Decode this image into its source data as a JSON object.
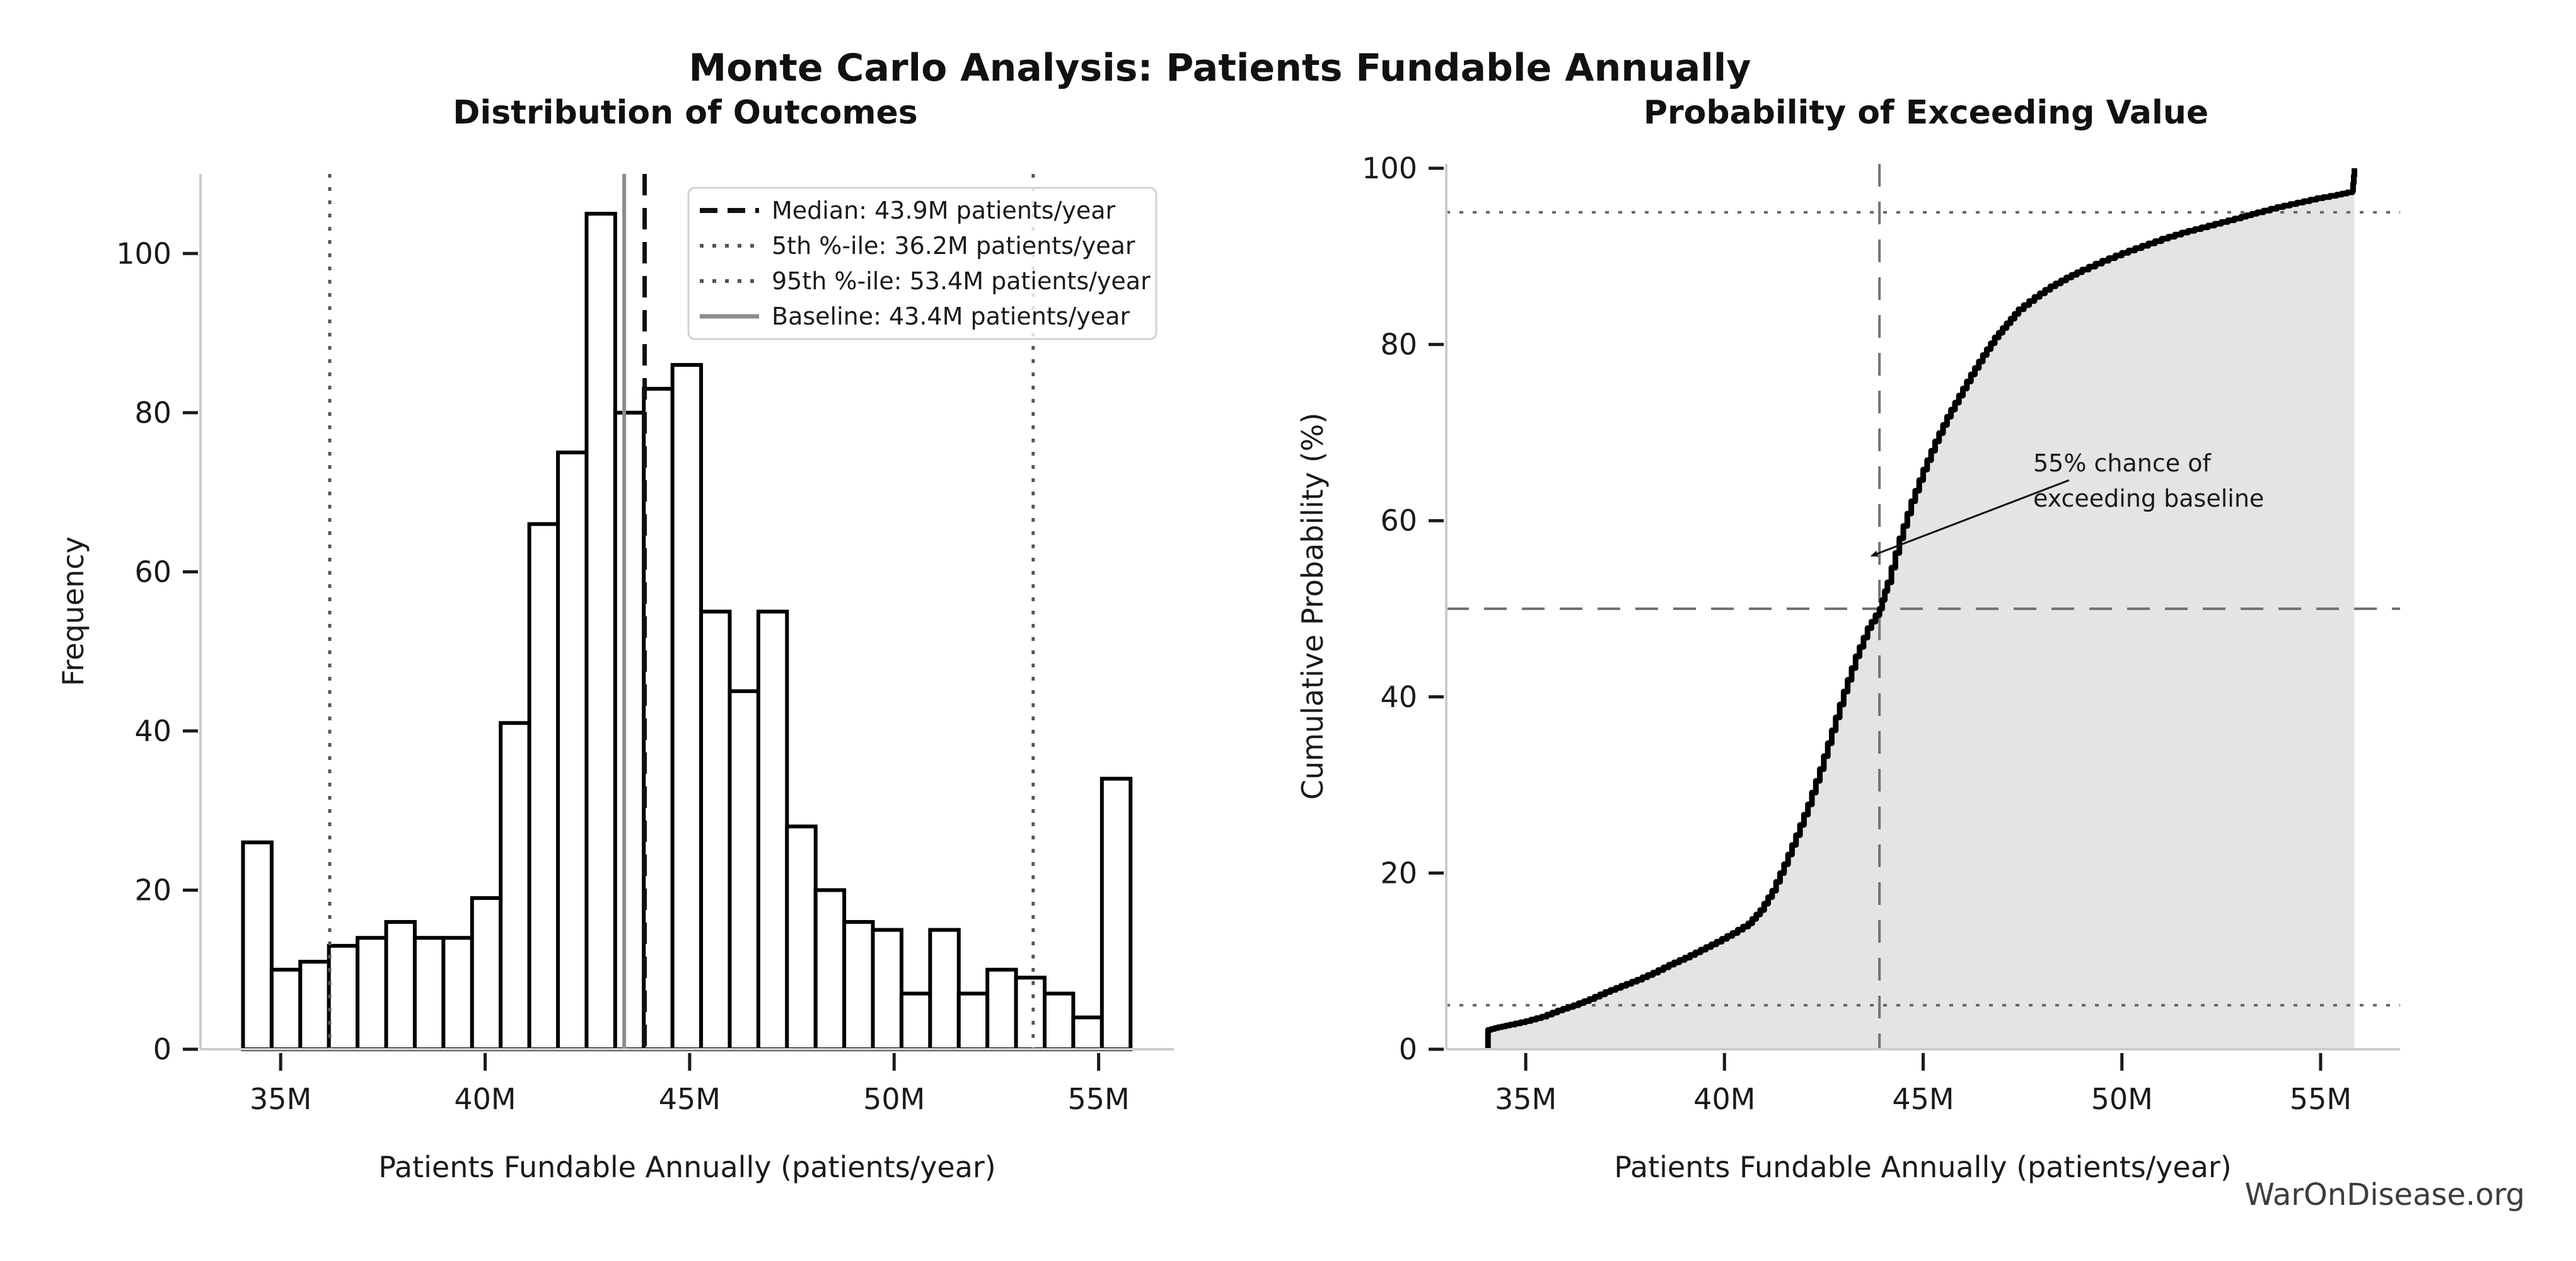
{
  "figure": {
    "title": "Monte Carlo Analysis: Patients Fundable Annually",
    "watermark": "WarOnDisease.org",
    "background": "#ffffff",
    "spine_color": "#cccccc",
    "tick_color": "#1a1a1a"
  },
  "chart_data": [
    {
      "type": "bar",
      "subtype": "histogram",
      "title": "Distribution of Outcomes",
      "xlabel": "Patients Fundable Annually (patients/year)",
      "ylabel": "Frequency",
      "n_samples": 1000,
      "bin_start": 34.08,
      "bin_width": 0.7,
      "counts": [
        26,
        10,
        11,
        13,
        14,
        16,
        14,
        14,
        19,
        41,
        66,
        75,
        105,
        80,
        83,
        86,
        55,
        45,
        55,
        28,
        20,
        16,
        15,
        7,
        15,
        7,
        10,
        9,
        7,
        4,
        34
      ],
      "xlim": [
        33.04,
        56.84
      ],
      "ylim": [
        0,
        110
      ],
      "xticks": [
        35,
        40,
        45,
        50,
        55
      ],
      "xtick_labels": [
        "35M",
        "40M",
        "45M",
        "50M",
        "55M"
      ],
      "yticks": [
        0,
        20,
        40,
        60,
        80,
        100
      ],
      "ytick_labels": [
        "0",
        "20",
        "40",
        "60",
        "80",
        "100"
      ],
      "grid": false,
      "bar_fill": "#ffffff",
      "bar_edge": "#000000",
      "bar_edge_width": 6,
      "legend_position": "upper right",
      "vlines": [
        {
          "x": 43.9,
          "label": "Median: 43.9M patients/year",
          "style": "dashed",
          "color": "#111111",
          "width": 7
        },
        {
          "x": 36.2,
          "label": "5th %-ile: 36.2M patients/year",
          "style": "dotted",
          "color": "#555555",
          "width": 5
        },
        {
          "x": 53.4,
          "label": "95th %-ile: 53.4M patients/year",
          "style": "dotted",
          "color": "#555555",
          "width": 5
        },
        {
          "x": 43.4,
          "label": "Baseline: 43.4M patients/year",
          "style": "solid",
          "color": "#8c8c8c",
          "width": 6
        }
      ]
    },
    {
      "type": "line",
      "subtype": "ecdf-area",
      "title": "Probability of Exceeding Value",
      "xlabel": "Patients Fundable Annually (patients/year)",
      "ylabel": "Cumulative Probability (%)",
      "x": [
        34.05,
        34.05,
        34.3,
        34.6,
        35.0,
        35.4,
        35.8,
        36.2,
        36.6,
        37.0,
        37.4,
        37.8,
        38.2,
        38.6,
        39.0,
        39.4,
        39.8,
        40.2,
        40.6,
        40.9,
        41.2,
        41.5,
        41.8,
        42.1,
        42.4,
        42.7,
        43.0,
        43.3,
        43.6,
        43.9,
        44.1,
        44.4,
        44.7,
        45.0,
        45.3,
        45.6,
        45.9,
        46.2,
        46.5,
        46.8,
        47.1,
        47.4,
        47.8,
        48.2,
        48.6,
        49.0,
        49.5,
        50.0,
        50.5,
        51.0,
        51.5,
        52.0,
        52.5,
        53.0,
        53.4,
        53.9,
        54.4,
        54.9,
        55.4,
        55.8,
        55.85
      ],
      "y": [
        0,
        2.2,
        2.5,
        2.8,
        3.2,
        3.7,
        4.4,
        5.0,
        5.7,
        6.5,
        7.2,
        7.9,
        8.7,
        9.6,
        10.4,
        11.3,
        12.2,
        13.2,
        14.3,
        15.8,
        18.0,
        21.0,
        24.3,
        27.8,
        31.8,
        36.2,
        40.6,
        44.6,
        47.8,
        50.0,
        53.0,
        58.0,
        62.2,
        65.8,
        69.0,
        71.8,
        74.2,
        76.6,
        78.8,
        80.8,
        82.4,
        84.0,
        85.4,
        86.6,
        87.6,
        88.5,
        89.5,
        90.4,
        91.2,
        92.0,
        92.7,
        93.3,
        93.9,
        94.5,
        95.0,
        95.6,
        96.1,
        96.6,
        97.0,
        97.4,
        100
      ],
      "xlim": [
        33.0,
        57.0
      ],
      "ylim": [
        0,
        100.5
      ],
      "xticks": [
        35,
        40,
        45,
        50,
        55
      ],
      "xtick_labels": [
        "35M",
        "40M",
        "45M",
        "50M",
        "55M"
      ],
      "yticks": [
        0,
        20,
        40,
        60,
        80,
        100
      ],
      "ytick_labels": [
        "0",
        "20",
        "40",
        "60",
        "80",
        "100"
      ],
      "grid": false,
      "line_color": "#000000",
      "line_width": 9,
      "fill_color": "#e4e4e4",
      "hlines": [
        {
          "y": 50,
          "style": "dashed",
          "color": "#737373",
          "width": 4
        },
        {
          "y": 5,
          "style": "dotted",
          "color": "#666666",
          "width": 4
        },
        {
          "y": 95,
          "style": "dotted",
          "color": "#666666",
          "width": 4
        }
      ],
      "vlines": [
        {
          "x": 43.9,
          "style": "dashed",
          "color": "#737373",
          "width": 4
        }
      ],
      "annotation": {
        "line1": "55% chance of",
        "line2": "exceeding baseline",
        "arrow_target_x": 43.7,
        "arrow_target_y": 56
      }
    }
  ]
}
